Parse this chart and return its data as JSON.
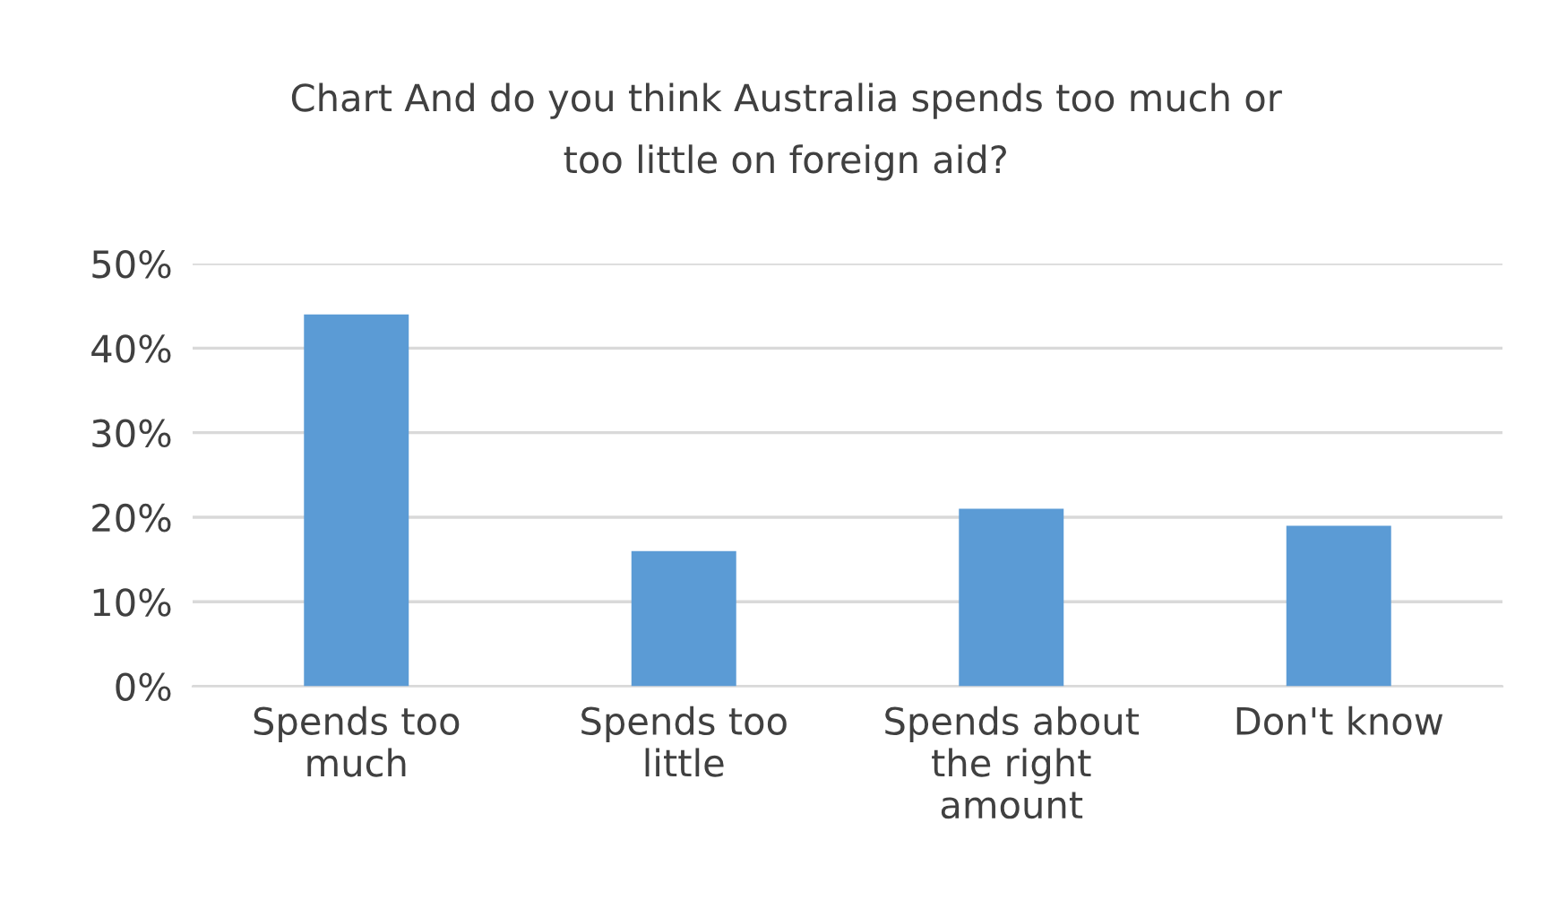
{
  "chart_data": {
    "type": "bar",
    "title": "Chart And do you think Australia spends too much or\ntoo little on foreign aid?",
    "categories": [
      "Spends too\nmuch",
      "Spends too\nlittle",
      "Spends about\nthe right\namount",
      "Don't know"
    ],
    "values": [
      44,
      16,
      21,
      19
    ],
    "color": "#5b9bd5",
    "ylim": [
      0,
      50
    ],
    "yticks": [
      {
        "value": 0,
        "label": "0%"
      },
      {
        "value": 10,
        "label": "10%"
      },
      {
        "value": 20,
        "label": "20%"
      },
      {
        "value": 30,
        "label": "30%"
      },
      {
        "value": 40,
        "label": "40%"
      },
      {
        "value": 50,
        "label": "50%"
      }
    ],
    "grid": "y"
  }
}
